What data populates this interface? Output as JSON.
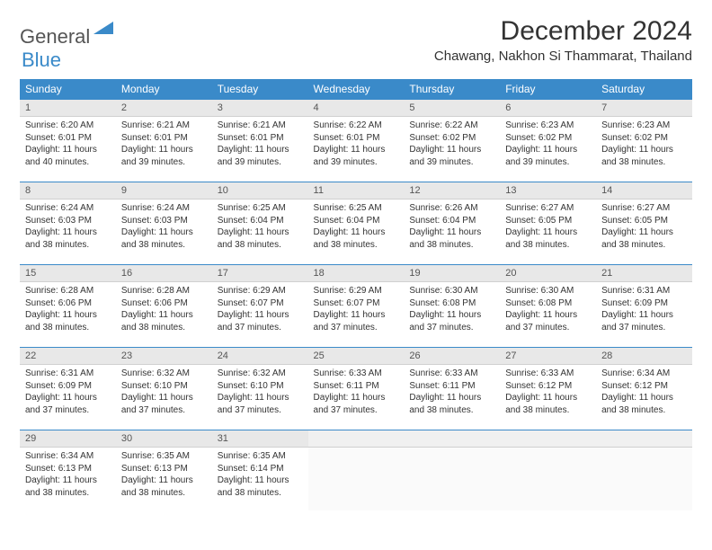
{
  "logo": {
    "text1": "General",
    "text2": "Blue"
  },
  "title": "December 2024",
  "location": "Chawang, Nakhon Si Thammarat, Thailand",
  "colors": {
    "header_bg": "#3a8ac9",
    "header_text": "#ffffff",
    "daynum_bg": "#e8e8e8",
    "border": "#3a8ac9",
    "logo_blue": "#3a8ac9"
  },
  "weekdays": [
    "Sunday",
    "Monday",
    "Tuesday",
    "Wednesday",
    "Thursday",
    "Friday",
    "Saturday"
  ],
  "weeks": [
    [
      {
        "n": "1",
        "sunrise": "6:20 AM",
        "sunset": "6:01 PM",
        "daylight": "11 hours and 40 minutes."
      },
      {
        "n": "2",
        "sunrise": "6:21 AM",
        "sunset": "6:01 PM",
        "daylight": "11 hours and 39 minutes."
      },
      {
        "n": "3",
        "sunrise": "6:21 AM",
        "sunset": "6:01 PM",
        "daylight": "11 hours and 39 minutes."
      },
      {
        "n": "4",
        "sunrise": "6:22 AM",
        "sunset": "6:01 PM",
        "daylight": "11 hours and 39 minutes."
      },
      {
        "n": "5",
        "sunrise": "6:22 AM",
        "sunset": "6:02 PM",
        "daylight": "11 hours and 39 minutes."
      },
      {
        "n": "6",
        "sunrise": "6:23 AM",
        "sunset": "6:02 PM",
        "daylight": "11 hours and 39 minutes."
      },
      {
        "n": "7",
        "sunrise": "6:23 AM",
        "sunset": "6:02 PM",
        "daylight": "11 hours and 38 minutes."
      }
    ],
    [
      {
        "n": "8",
        "sunrise": "6:24 AM",
        "sunset": "6:03 PM",
        "daylight": "11 hours and 38 minutes."
      },
      {
        "n": "9",
        "sunrise": "6:24 AM",
        "sunset": "6:03 PM",
        "daylight": "11 hours and 38 minutes."
      },
      {
        "n": "10",
        "sunrise": "6:25 AM",
        "sunset": "6:04 PM",
        "daylight": "11 hours and 38 minutes."
      },
      {
        "n": "11",
        "sunrise": "6:25 AM",
        "sunset": "6:04 PM",
        "daylight": "11 hours and 38 minutes."
      },
      {
        "n": "12",
        "sunrise": "6:26 AM",
        "sunset": "6:04 PM",
        "daylight": "11 hours and 38 minutes."
      },
      {
        "n": "13",
        "sunrise": "6:27 AM",
        "sunset": "6:05 PM",
        "daylight": "11 hours and 38 minutes."
      },
      {
        "n": "14",
        "sunrise": "6:27 AM",
        "sunset": "6:05 PM",
        "daylight": "11 hours and 38 minutes."
      }
    ],
    [
      {
        "n": "15",
        "sunrise": "6:28 AM",
        "sunset": "6:06 PM",
        "daylight": "11 hours and 38 minutes."
      },
      {
        "n": "16",
        "sunrise": "6:28 AM",
        "sunset": "6:06 PM",
        "daylight": "11 hours and 38 minutes."
      },
      {
        "n": "17",
        "sunrise": "6:29 AM",
        "sunset": "6:07 PM",
        "daylight": "11 hours and 37 minutes."
      },
      {
        "n": "18",
        "sunrise": "6:29 AM",
        "sunset": "6:07 PM",
        "daylight": "11 hours and 37 minutes."
      },
      {
        "n": "19",
        "sunrise": "6:30 AM",
        "sunset": "6:08 PM",
        "daylight": "11 hours and 37 minutes."
      },
      {
        "n": "20",
        "sunrise": "6:30 AM",
        "sunset": "6:08 PM",
        "daylight": "11 hours and 37 minutes."
      },
      {
        "n": "21",
        "sunrise": "6:31 AM",
        "sunset": "6:09 PM",
        "daylight": "11 hours and 37 minutes."
      }
    ],
    [
      {
        "n": "22",
        "sunrise": "6:31 AM",
        "sunset": "6:09 PM",
        "daylight": "11 hours and 37 minutes."
      },
      {
        "n": "23",
        "sunrise": "6:32 AM",
        "sunset": "6:10 PM",
        "daylight": "11 hours and 37 minutes."
      },
      {
        "n": "24",
        "sunrise": "6:32 AM",
        "sunset": "6:10 PM",
        "daylight": "11 hours and 37 minutes."
      },
      {
        "n": "25",
        "sunrise": "6:33 AM",
        "sunset": "6:11 PM",
        "daylight": "11 hours and 37 minutes."
      },
      {
        "n": "26",
        "sunrise": "6:33 AM",
        "sunset": "6:11 PM",
        "daylight": "11 hours and 38 minutes."
      },
      {
        "n": "27",
        "sunrise": "6:33 AM",
        "sunset": "6:12 PM",
        "daylight": "11 hours and 38 minutes."
      },
      {
        "n": "28",
        "sunrise": "6:34 AM",
        "sunset": "6:12 PM",
        "daylight": "11 hours and 38 minutes."
      }
    ],
    [
      {
        "n": "29",
        "sunrise": "6:34 AM",
        "sunset": "6:13 PM",
        "daylight": "11 hours and 38 minutes."
      },
      {
        "n": "30",
        "sunrise": "6:35 AM",
        "sunset": "6:13 PM",
        "daylight": "11 hours and 38 minutes."
      },
      {
        "n": "31",
        "sunrise": "6:35 AM",
        "sunset": "6:14 PM",
        "daylight": "11 hours and 38 minutes."
      },
      null,
      null,
      null,
      null
    ]
  ],
  "labels": {
    "sunrise": "Sunrise:",
    "sunset": "Sunset:",
    "daylight": "Daylight:"
  }
}
